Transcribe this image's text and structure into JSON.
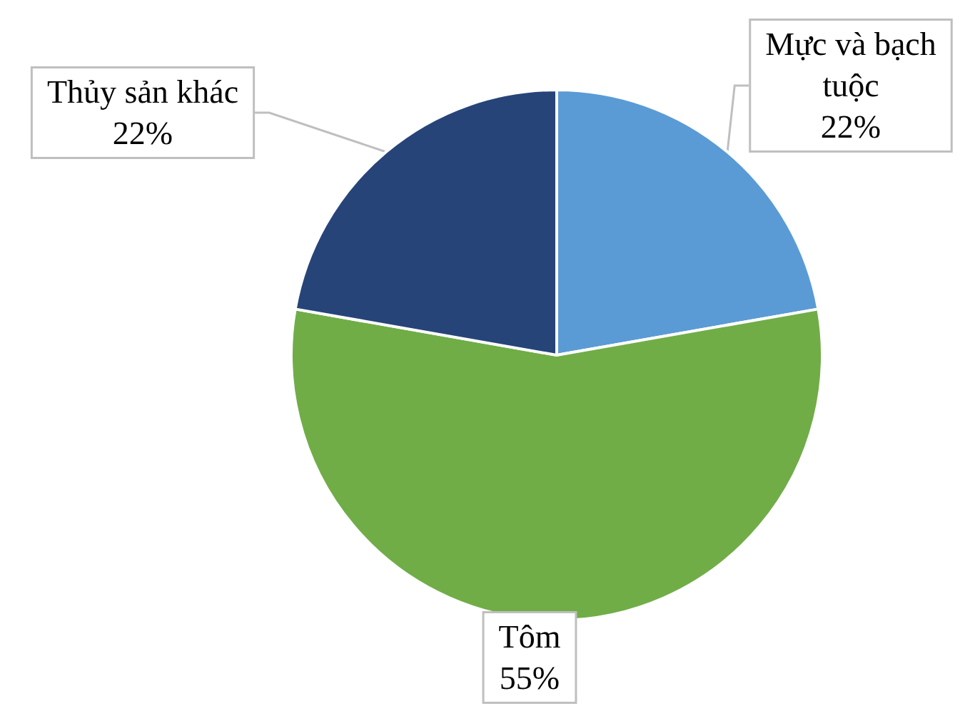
{
  "chart_data": {
    "type": "pie",
    "categories": [
      "Mực và bạch tuộc",
      "Tôm",
      "Thủy sản khác"
    ],
    "values": [
      22,
      55,
      22
    ],
    "colors": [
      "#5b9bd5",
      "#70ad47",
      "#264478"
    ],
    "value_labels": [
      "22%",
      "55%",
      "22%"
    ]
  }
}
